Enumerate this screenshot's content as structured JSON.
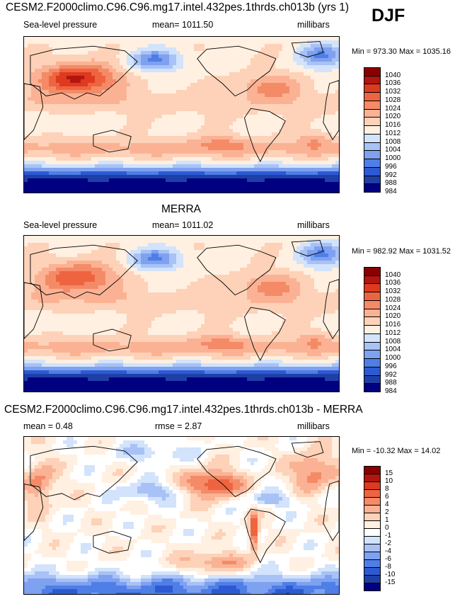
{
  "header": {
    "season": "DJF"
  },
  "colors": {
    "slp": [
      "#000080",
      "#1f3fa8",
      "#2d5ad2",
      "#4f7ee6",
      "#7ea1f0",
      "#a8c2f6",
      "#d2e3fb",
      "#fff0e1",
      "#fdd2b8",
      "#fbb294",
      "#f58a67",
      "#ef6440",
      "#dd3a1f",
      "#b3150f",
      "#8a0000"
    ],
    "diff": [
      "#000080",
      "#1f3fa8",
      "#2d5ad2",
      "#4f7ee6",
      "#7ea1f0",
      "#a8c2f6",
      "#d2e3fb",
      "#ffffff",
      "#fff0e1",
      "#fdd2b8",
      "#fbb294",
      "#f58a67",
      "#ef6440",
      "#dd3a1f",
      "#b3150f",
      "#8a0000"
    ]
  },
  "panels": [
    {
      "title": "CESM2.F2000climo.C96.C96.mg17.intel.432pes.1thrds.ch013b (yrs 1)",
      "left_label": "Sea-level pressure",
      "center_label": "mean= 1011.50",
      "units": "millibars",
      "minmax": "Min = 973.30 Max = 1035.16",
      "ticks": [
        "1040",
        "1036",
        "1032",
        "1028",
        "1024",
        "1020",
        "1016",
        "1012",
        "1008",
        "1004",
        "1000",
        "996",
        "992",
        "988",
        "984"
      ],
      "scheme": "slp",
      "variant": 0
    },
    {
      "title": "MERRA",
      "left_label": "Sea-level pressure",
      "center_label": "mean= 1011.02",
      "units": "millibars",
      "minmax": "Min = 982.92 Max = 1031.52",
      "ticks": [
        "1040",
        "1036",
        "1032",
        "1028",
        "1024",
        "1020",
        "1016",
        "1012",
        "1008",
        "1004",
        "1000",
        "996",
        "992",
        "988",
        "984"
      ],
      "scheme": "slp",
      "variant": 1
    },
    {
      "title": "CESM2.F2000climo.C96.C96.mg17.intel.432pes.1thrds.ch013b - MERRA",
      "left_label": "mean =   0.48",
      "center_label": "rmse =   2.87",
      "units": "millibars",
      "minmax": "Min = -10.32 Max =  14.02",
      "ticks": [
        "15",
        "10",
        "8",
        "6",
        "4",
        "2",
        "1",
        "0",
        "-1",
        "-2",
        "-4",
        "-6",
        "-8",
        "-10",
        "-15"
      ],
      "scheme": "diff",
      "variant": 2
    }
  ]
}
